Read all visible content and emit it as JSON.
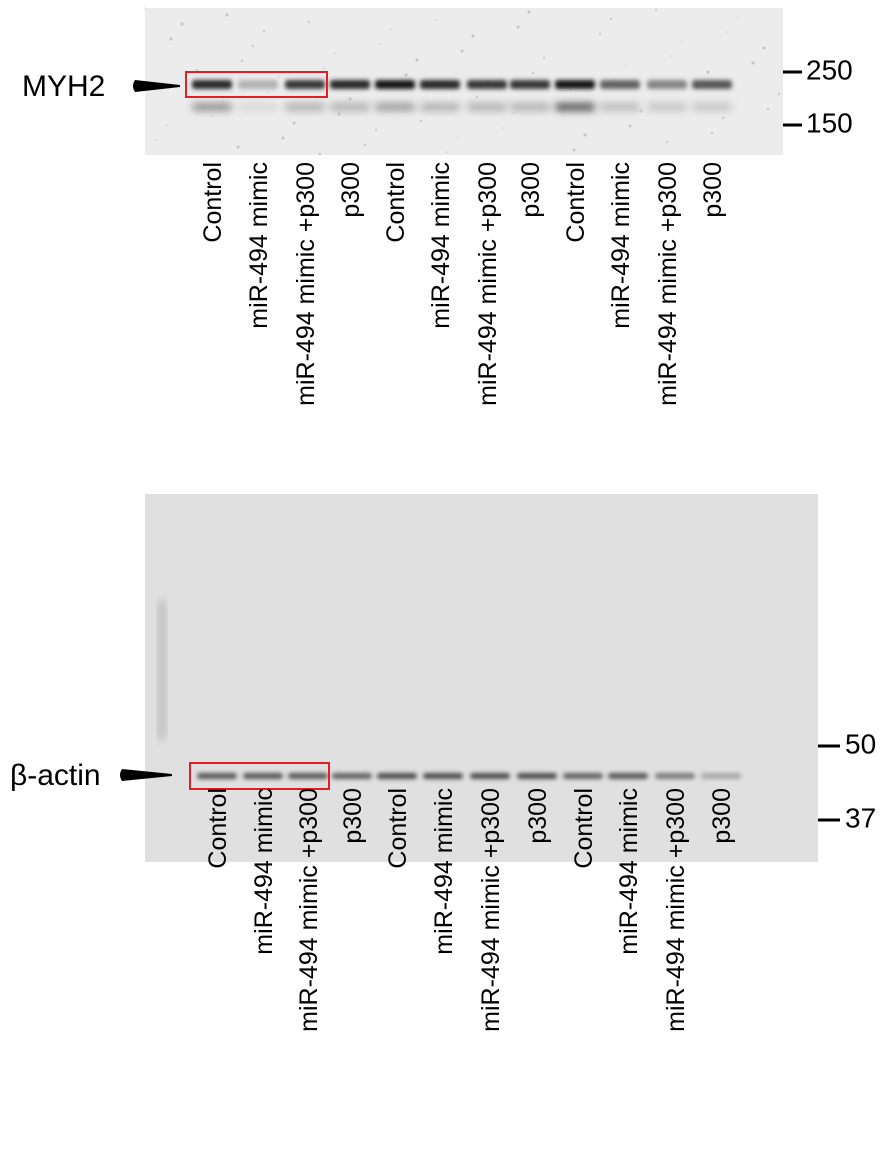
{
  "blots": [
    {
      "protein": "MYH2",
      "markers": [
        "250",
        "150"
      ],
      "lanes": [
        "Control",
        "miR-494 mimic",
        "miR-494 mimic +p300",
        "p300",
        "Control",
        "miR-494 mimic",
        "miR-494 mimic +p300",
        "p300",
        "Control",
        "miR-494 mimic",
        "miR-494 mimic +p300",
        "p300"
      ]
    },
    {
      "protein": "β-actin",
      "markers": [
        "50",
        "37"
      ],
      "lanes": [
        "Control",
        "miR-494 mimic",
        "miR-494 mimic +p300",
        "p300",
        "Control",
        "miR-494 mimic",
        "miR-494 mimic +p300",
        "p300",
        "Control",
        "miR-494 mimic",
        "miR-494 mimic +p300",
        "p300"
      ]
    }
  ]
}
